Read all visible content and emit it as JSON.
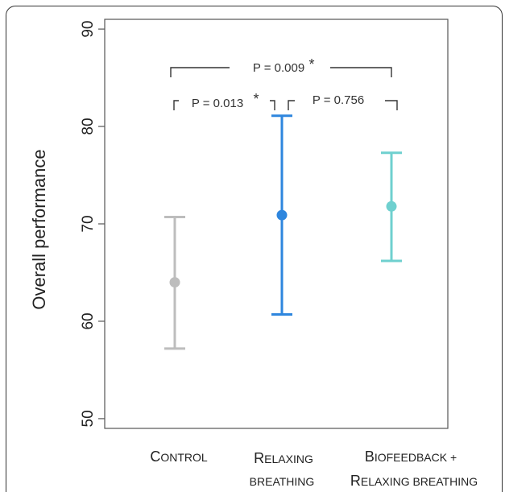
{
  "chart_data": {
    "type": "scatter",
    "ylabel": "Overall performance",
    "xlabel": "",
    "ylim": [
      49,
      91
    ],
    "yticks": [
      50,
      60,
      70,
      80,
      90
    ],
    "categories": [
      {
        "first": "C",
        "rest": "ONTROL",
        "second": ""
      },
      {
        "first": "R",
        "rest": "ELAXING",
        "second": "BREATHING"
      },
      {
        "first": "B",
        "rest": "IOFEEDBACK +",
        "second": "ELAXING BREATHING",
        "second_first": "R"
      }
    ],
    "series": [
      {
        "mean": 64.0,
        "lower": 57.2,
        "upper": 70.7,
        "color": "#bdbdbd"
      },
      {
        "mean": 70.9,
        "lower": 60.7,
        "upper": 81.1,
        "color": "#2e86de"
      },
      {
        "mean": 71.8,
        "lower": 66.2,
        "upper": 77.3,
        "color": "#6fd0cf"
      }
    ],
    "annotations": [
      {
        "text": "P = 0.009",
        "star": "*",
        "from": 0,
        "to": 2
      },
      {
        "text": "P = 0.013",
        "star": "*",
        "from": 0,
        "to": 1
      },
      {
        "text": "P = 0.756",
        "star": "",
        "from": 1,
        "to": 2
      }
    ],
    "grid": false
  }
}
